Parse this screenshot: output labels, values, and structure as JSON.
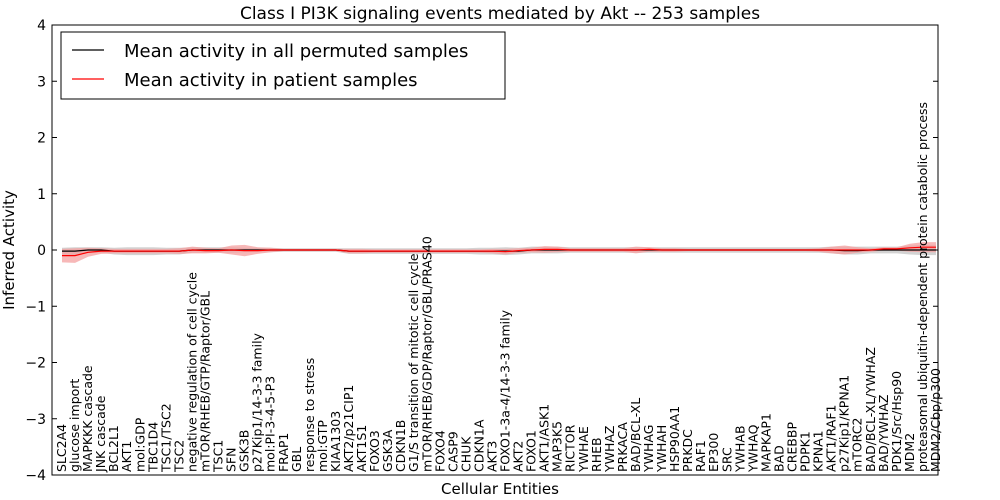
{
  "chart_data": {
    "type": "line",
    "title": "Class I PI3K signaling events mediated by Akt -- 253 samples",
    "xlabel": "Cellular Entities",
    "ylabel": "Inferred Activity",
    "ylim": [
      -4,
      4
    ],
    "yticks": [
      4,
      3,
      2,
      1,
      0,
      -1,
      -2,
      -3,
      -4
    ],
    "ytick_labels": [
      "4",
      "3",
      "2",
      "1",
      "0",
      "−1",
      "−2",
      "−3",
      "−4"
    ],
    "grid": false,
    "legend_position": "upper-left",
    "categories": [
      "SLC2A4",
      "glucose import",
      "MAPKKK cascade",
      "JNK cascade",
      "BCL2L1",
      "AKT1",
      "mol:GDP",
      "TBC1D4",
      "TSC1/TSC2",
      "TSC2",
      "negative regulation of cell cycle",
      "mTOR/RHEB/GTP/Raptor/GBL",
      "TSC1",
      "SFN",
      "GSK3B",
      "p27Kip1/14-3-3 family",
      "mol:PI-3-4-5-P3",
      "FRAP1",
      "GBL",
      "response to stress",
      "mol:GTP",
      "KIAA1303",
      "AKT2/p21CIP1",
      "AKT1S1",
      "FOXO3",
      "GSK3A",
      "CDKN1B",
      "G1/S transition of mitotic cell cycle",
      "mTOR/RHEB/GDP/Raptor/GBL/PRAS40",
      "FOXO4",
      "CASP9",
      "CHUK",
      "CDKN1A",
      "AKT3",
      "FOXO1-3a-4/14-3-3 family",
      "AKT2",
      "FOXO1",
      "AKT1/ASK1",
      "MAP3K5",
      "RICTOR",
      "YWHAE",
      "RHEB",
      "YWHAZ",
      "PRKACA",
      "BAD/BCL-XL",
      "YWHAG",
      "YWHAH",
      "HSP90AA1",
      "PRKDC",
      "RAF1",
      "EP300",
      "SRC",
      "YWHAB",
      "YWHAQ",
      "MAPKAP1",
      "BAD",
      "CREBBP",
      "PDPK1",
      "KPNA1",
      "AKT1/RAF1",
      "p27Kip1/KPNA1",
      "mTORC2",
      "BAD/BCL-XL/YWHAZ",
      "BAD/YWHAZ",
      "PDK1/Src/Hsp90",
      "MDM2",
      "proteasomal ubiquitin-dependent protein catabolic process",
      "MDM2/Cbp/p300"
    ],
    "series": [
      {
        "name": "Mean activity in all permuted samples",
        "color": "#000000",
        "band_color": "#c8c8c8",
        "values": [
          -0.02,
          -0.02,
          0.0,
          0.0,
          -0.02,
          -0.02,
          -0.02,
          -0.02,
          -0.02,
          -0.02,
          0.0,
          0.0,
          0.0,
          0.0,
          0.0,
          0.0,
          0.0,
          0.0,
          0.0,
          0.0,
          0.0,
          0.0,
          -0.02,
          -0.02,
          -0.02,
          -0.02,
          -0.02,
          -0.02,
          -0.02,
          -0.02,
          -0.02,
          -0.02,
          -0.02,
          -0.02,
          -0.02,
          -0.02,
          0.0,
          0.0,
          0.0,
          0.0,
          0.0,
          0.0,
          0.0,
          0.0,
          0.0,
          0.0,
          0.0,
          0.0,
          0.0,
          0.0,
          0.0,
          0.0,
          0.0,
          0.0,
          0.0,
          0.0,
          0.0,
          0.0,
          0.0,
          0.0,
          -0.01,
          -0.01,
          0.0,
          0.0,
          0.0,
          0.0,
          0.0,
          0.0
        ],
        "band": [
          0.06,
          0.07,
          0.05,
          0.05,
          0.06,
          0.07,
          0.07,
          0.07,
          0.06,
          0.06,
          0.05,
          0.05,
          0.05,
          0.05,
          0.04,
          0.04,
          0.04,
          0.03,
          0.03,
          0.03,
          0.03,
          0.03,
          0.05,
          0.05,
          0.05,
          0.05,
          0.05,
          0.05,
          0.05,
          0.05,
          0.05,
          0.05,
          0.06,
          0.06,
          0.07,
          0.06,
          0.06,
          0.06,
          0.06,
          0.05,
          0.05,
          0.05,
          0.05,
          0.05,
          0.05,
          0.05,
          0.05,
          0.05,
          0.05,
          0.05,
          0.05,
          0.05,
          0.05,
          0.05,
          0.05,
          0.05,
          0.05,
          0.05,
          0.05,
          0.06,
          0.07,
          0.07,
          0.06,
          0.06,
          0.06,
          0.08,
          0.09,
          0.09
        ]
      },
      {
        "name": "Mean activity in patient samples",
        "color": "#ff0000",
        "band_color": "#f4a0a0",
        "values": [
          -0.1,
          -0.1,
          -0.04,
          -0.02,
          -0.02,
          -0.02,
          -0.02,
          -0.02,
          -0.02,
          -0.02,
          0.0,
          -0.01,
          -0.01,
          0.0,
          -0.01,
          -0.01,
          0.0,
          0.0,
          0.0,
          0.0,
          0.0,
          0.0,
          -0.02,
          -0.02,
          -0.02,
          -0.02,
          -0.02,
          -0.02,
          -0.02,
          -0.02,
          -0.02,
          -0.02,
          -0.02,
          -0.02,
          -0.03,
          -0.01,
          0.0,
          0.01,
          0.01,
          0.0,
          0.0,
          0.0,
          0.0,
          0.0,
          0.0,
          0.01,
          0.0,
          0.0,
          0.0,
          0.0,
          0.0,
          0.0,
          0.0,
          0.0,
          0.0,
          0.0,
          0.0,
          0.0,
          0.0,
          0.0,
          0.0,
          0.0,
          0.0,
          0.02,
          0.02,
          0.04,
          0.05,
          0.05
        ],
        "band": [
          0.12,
          0.13,
          0.08,
          0.05,
          0.04,
          0.04,
          0.04,
          0.04,
          0.04,
          0.05,
          0.06,
          0.05,
          0.04,
          0.08,
          0.1,
          0.06,
          0.04,
          0.02,
          0.02,
          0.02,
          0.02,
          0.02,
          0.04,
          0.04,
          0.03,
          0.03,
          0.03,
          0.03,
          0.03,
          0.03,
          0.03,
          0.03,
          0.03,
          0.04,
          0.05,
          0.04,
          0.04,
          0.06,
          0.05,
          0.03,
          0.03,
          0.03,
          0.03,
          0.03,
          0.06,
          0.04,
          0.03,
          0.03,
          0.02,
          0.02,
          0.02,
          0.02,
          0.02,
          0.02,
          0.02,
          0.02,
          0.02,
          0.02,
          0.03,
          0.06,
          0.08,
          0.05,
          0.03,
          0.03,
          0.03,
          0.07,
          0.09,
          0.09
        ]
      }
    ]
  }
}
